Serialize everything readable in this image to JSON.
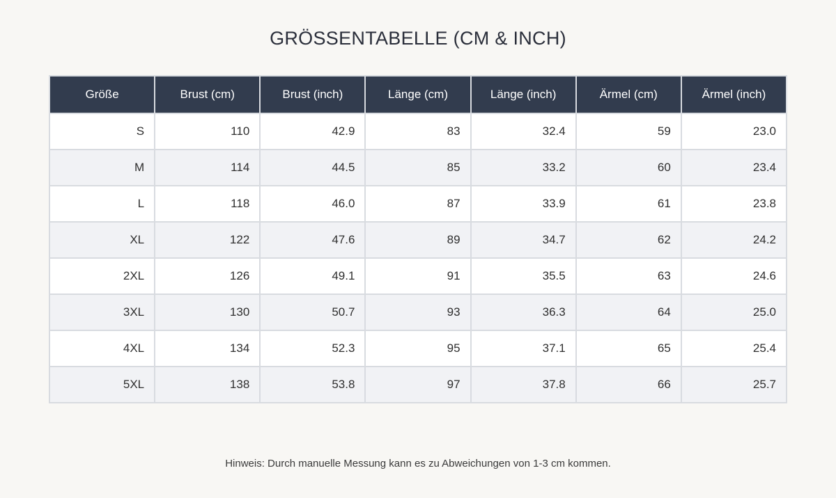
{
  "title": "GRÖSSENTABELLE (CM & INCH)",
  "table": {
    "headers": [
      "Größe",
      "Brust (cm)",
      "Brust (inch)",
      "Länge (cm)",
      "Länge (inch)",
      "Ärmel (cm)",
      "Ärmel (inch)"
    ],
    "rows": [
      [
        "S",
        "110",
        "42.9",
        "83",
        "32.4",
        "59",
        "23.0"
      ],
      [
        "M",
        "114",
        "44.5",
        "85",
        "33.2",
        "60",
        "23.4"
      ],
      [
        "L",
        "118",
        "46.0",
        "87",
        "33.9",
        "61",
        "23.8"
      ],
      [
        "XL",
        "122",
        "47.6",
        "89",
        "34.7",
        "62",
        "24.2"
      ],
      [
        "2XL",
        "126",
        "49.1",
        "91",
        "35.5",
        "63",
        "24.6"
      ],
      [
        "3XL",
        "130",
        "50.7",
        "93",
        "36.3",
        "64",
        "25.0"
      ],
      [
        "4XL",
        "134",
        "52.3",
        "95",
        "37.1",
        "65",
        "25.4"
      ],
      [
        "5XL",
        "138",
        "53.8",
        "97",
        "37.8",
        "66",
        "25.7"
      ]
    ]
  },
  "note": "Hinweis: Durch manuelle Messung kann es zu Abweichungen von 1-3 cm kommen.",
  "colors": {
    "background": "#f8f7f4",
    "header_bg": "#323c4e",
    "header_text": "#ffffff",
    "row_alt": "#f1f2f5",
    "border": "#d8dbe0"
  }
}
